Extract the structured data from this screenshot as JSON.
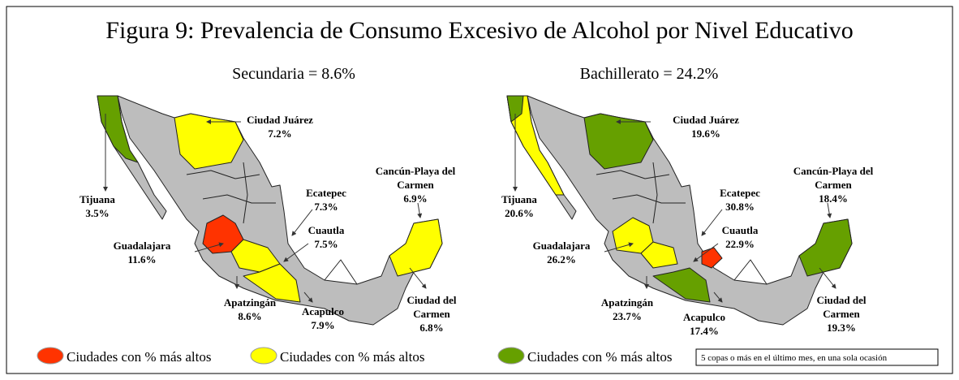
{
  "title": "Figura 9: Prevalencia de Consumo Excesivo de Alcohol por Nivel Educativo",
  "panels": [
    {
      "subtitle": "Secundaria = 8.6%",
      "cities": [
        {
          "name": [
            "Ciudad Juárez"
          ],
          "value": "7.2%"
        },
        {
          "name": [
            "Tijuana"
          ],
          "value": "3.5%"
        },
        {
          "name": [
            "Ecatepec"
          ],
          "value": "7.3%"
        },
        {
          "name": [
            "Cancún-Playa del",
            "Carmen"
          ],
          "value": "6.9%"
        },
        {
          "name": [
            "Cuautla"
          ],
          "value": "7.5%"
        },
        {
          "name": [
            "Guadalajara"
          ],
          "value": "11.6%"
        },
        {
          "name": [
            "Apatzingán"
          ],
          "value": "8.6%"
        },
        {
          "name": [
            "Acapulco"
          ],
          "value": "7.9%"
        },
        {
          "name": [
            "Ciudad del",
            "Carmen"
          ],
          "value": "6.8%"
        }
      ]
    },
    {
      "subtitle": "Bachillerato = 24.2%",
      "cities": [
        {
          "name": [
            "Ciudad Juárez"
          ],
          "value": "19.6%"
        },
        {
          "name": [
            "Tijuana"
          ],
          "value": "20.6%"
        },
        {
          "name": [
            "Ecatepec"
          ],
          "value": "30.8%"
        },
        {
          "name": [
            "Cancún-Playa del",
            "Carmen"
          ],
          "value": "18.4%"
        },
        {
          "name": [
            "Cuautla"
          ],
          "value": "22.9%"
        },
        {
          "name": [
            "Guadalajara"
          ],
          "value": "26.2%"
        },
        {
          "name": [
            "Apatzingán"
          ],
          "value": "23.7%"
        },
        {
          "name": [
            "Acapulco"
          ],
          "value": "17.4%"
        },
        {
          "name": [
            "Ciudad del",
            "Carmen"
          ],
          "value": "19.3%"
        }
      ]
    }
  ],
  "legend": [
    {
      "label": "Ciudades con % más altos",
      "color": "#ff3300"
    },
    {
      "label": "Ciudades con % más altos",
      "color": "#ffff00"
    },
    {
      "label": "Ciudades con % más altos",
      "color": "#66a000"
    }
  ],
  "note": "5 copas o más en el último mes, en una sola ocasión"
}
